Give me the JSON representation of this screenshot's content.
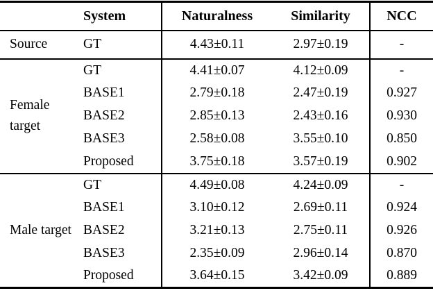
{
  "table": {
    "headers": {
      "group": "",
      "system": "System",
      "naturalness": "Naturalness",
      "similarity": "Similarity",
      "ncc": "NCC"
    },
    "groups": [
      {
        "label": "Source",
        "rows": [
          {
            "system": "GT",
            "naturalness": "4.43±0.11",
            "similarity": "2.97±0.19",
            "ncc": "-"
          }
        ]
      },
      {
        "label": "Female target",
        "rows": [
          {
            "system": "GT",
            "naturalness": "4.41±0.07",
            "similarity": "4.12±0.09",
            "ncc": "-"
          },
          {
            "system": "BASE1",
            "naturalness": "2.79±0.18",
            "similarity": "2.47±0.19",
            "ncc": "0.927"
          },
          {
            "system": "BASE2",
            "naturalness": "2.85±0.13",
            "similarity": "2.43±0.16",
            "ncc": "0.930"
          },
          {
            "system": "BASE3",
            "naturalness": "2.58±0.08",
            "similarity": "3.55±0.10",
            "ncc": "0.850"
          },
          {
            "system": "Proposed",
            "naturalness": "3.75±0.18",
            "similarity": "3.57±0.19",
            "ncc": "0.902"
          }
        ]
      },
      {
        "label": "Male target",
        "rows": [
          {
            "system": "GT",
            "naturalness": "4.49±0.08",
            "similarity": "4.24±0.09",
            "ncc": "-"
          },
          {
            "system": "BASE1",
            "naturalness": "3.10±0.12",
            "similarity": "2.69±0.11",
            "ncc": "0.924"
          },
          {
            "system": "BASE2",
            "naturalness": "3.21±0.13",
            "similarity": "2.75±0.11",
            "ncc": "0.926"
          },
          {
            "system": "BASE3",
            "naturalness": "2.35±0.09",
            "similarity": "2.96±0.14",
            "ncc": "0.870"
          },
          {
            "system": "Proposed",
            "naturalness": "3.64±0.15",
            "similarity": "3.42±0.09",
            "ncc": "0.889"
          }
        ]
      }
    ]
  }
}
